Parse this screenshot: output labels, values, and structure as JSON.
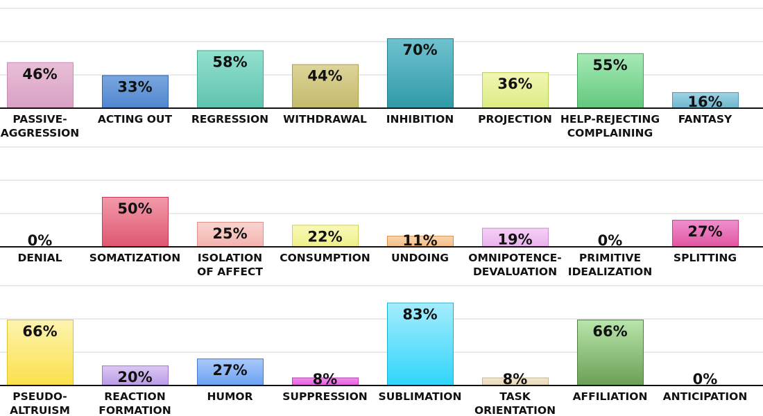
{
  "chart_data": [
    {
      "type": "bar",
      "ylim": [
        0,
        100
      ],
      "grid": true,
      "categories": [
        "PASSIVE-\nAGGRESSION",
        "ACTING OUT",
        "REGRESSION",
        "WITHDRAWAL",
        "INHIBITION",
        "PROJECTION",
        "HELP-REJECTING\nCOMPLAINING",
        "FANTASY"
      ],
      "values": [
        46,
        33,
        58,
        44,
        70,
        36,
        55,
        16
      ],
      "value_labels": [
        "46%",
        "33%",
        "58%",
        "44%",
        "70%",
        "36%",
        "55%",
        "16%"
      ],
      "colors": [
        {
          "top": "#e8bfd6",
          "bottom": "#d9a0c4",
          "stroke": "#c98ab4"
        },
        {
          "top": "#7aa6de",
          "bottom": "#4f86cf",
          "stroke": "#2f64ad"
        },
        {
          "top": "#93e0cf",
          "bottom": "#5ec3ad",
          "stroke": "#3aa98f"
        },
        {
          "top": "#ddd59a",
          "bottom": "#c3b96a",
          "stroke": "#a89d48"
        },
        {
          "top": "#6fc2cf",
          "bottom": "#2f9aa7",
          "stroke": "#1f7c88"
        },
        {
          "top": "#f1f7b3",
          "bottom": "#dceb83",
          "stroke": "#b9cc5a"
        },
        {
          "top": "#a6eab6",
          "bottom": "#62c77c",
          "stroke": "#3fa45a"
        },
        {
          "top": "#9ed4e6",
          "bottom": "#6eb5cc",
          "stroke": "#4d97b0"
        }
      ]
    },
    {
      "type": "bar",
      "ylim": [
        0,
        100
      ],
      "grid": true,
      "categories": [
        "DENIAL",
        "SOMATIZATION",
        "ISOLATION\nOF AFFECT",
        "CONSUMPTION",
        "UNDOING",
        "OMNIPOTENCE-\nDEVALUATION",
        "PRIMITIVE\nIDEALIZATION",
        "SPLITTING"
      ],
      "values": [
        0,
        50,
        25,
        22,
        11,
        19,
        0,
        27
      ],
      "value_labels": [
        "0%",
        "50%",
        "25%",
        "22%",
        "11%",
        "19%",
        "0%",
        "27%"
      ],
      "colors": [
        {
          "top": "#cccccc",
          "bottom": "#aaaaaa",
          "stroke": "#888888"
        },
        {
          "top": "#f29aaa",
          "bottom": "#df5670",
          "stroke": "#c63a55"
        },
        {
          "top": "#f9d4d0",
          "bottom": "#f2b3ad",
          "stroke": "#df8f88"
        },
        {
          "top": "#f9f9b8",
          "bottom": "#eef08a",
          "stroke": "#cfd25c"
        },
        {
          "top": "#f9d6b0",
          "bottom": "#f2bb82",
          "stroke": "#d98f45"
        },
        {
          "top": "#f6d0f7",
          "bottom": "#e8b1ec",
          "stroke": "#cd8ad3"
        },
        {
          "top": "#cccccc",
          "bottom": "#aaaaaa",
          "stroke": "#888888"
        },
        {
          "top": "#f08fce",
          "bottom": "#e0559f",
          "stroke": "#c63a86"
        }
      ]
    },
    {
      "type": "bar",
      "ylim": [
        0,
        100
      ],
      "grid": true,
      "categories": [
        "PSEUDO-\nALTRUISM",
        "REACTION\nFORMATION",
        "HUMOR",
        "SUPPRESSION",
        "SUBLIMATION",
        "TASK\nORIENTATION",
        "AFFILIATION",
        "ANTICIPATION"
      ],
      "values": [
        66,
        20,
        27,
        8,
        83,
        8,
        66,
        0
      ],
      "value_labels": [
        "66%",
        "20%",
        "27%",
        "8%",
        "83%",
        "8%",
        "66%",
        "0%"
      ],
      "colors": [
        {
          "top": "#fdf3b0",
          "bottom": "#fbe04a",
          "stroke": "#e2c220"
        },
        {
          "top": "#dcc8f2",
          "bottom": "#b89ae6",
          "stroke": "#9874cf"
        },
        {
          "top": "#a9c9fb",
          "bottom": "#6aa0f3",
          "stroke": "#3f78d6"
        },
        {
          "top": "#f38ef0",
          "bottom": "#e05ad9",
          "stroke": "#c03bb9"
        },
        {
          "top": "#a5ecfd",
          "bottom": "#2fd5fb",
          "stroke": "#11b3db"
        },
        {
          "top": "#f1e6cf",
          "bottom": "#e6d8b8",
          "stroke": "#c8b68e"
        },
        {
          "top": "#b9e6ab",
          "bottom": "#6a9e55",
          "stroke": "#4e7e3c"
        },
        {
          "top": "#cccccc",
          "bottom": "#aaaaaa",
          "stroke": "#888888"
        }
      ]
    }
  ]
}
